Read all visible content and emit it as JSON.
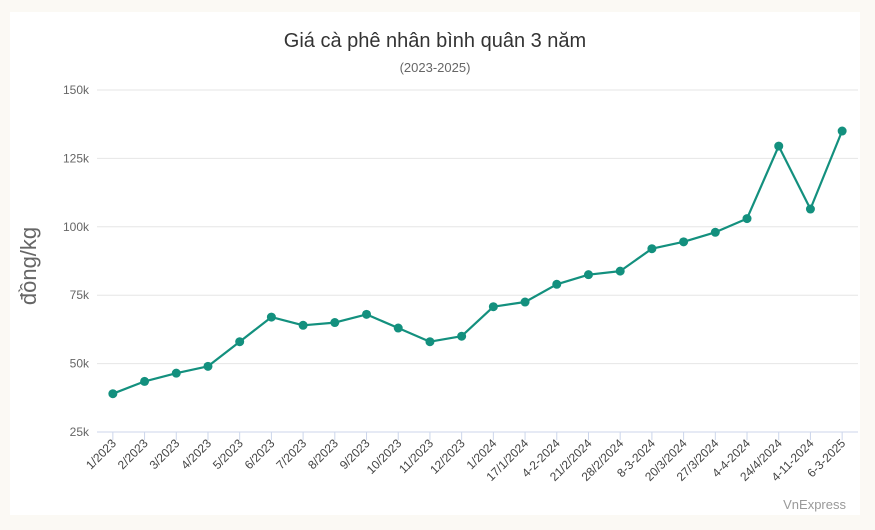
{
  "chart_data": {
    "type": "line",
    "title": "Giá cà phê nhân bình quân 3 năm",
    "subtitle": "(2023-2025)",
    "xlabel": "",
    "ylabel": "đồng/kg",
    "categories": [
      "1/2023",
      "2/2023",
      "3/2023",
      "4/2023",
      "5/2023",
      "6/2023",
      "7/2023",
      "8/2023",
      "9/2023",
      "10/2023",
      "11/2023",
      "12/2023",
      "1/2024",
      "17/1/2024",
      "4-2-2024",
      "21/2/2024",
      "28/2/2024",
      "8-3-2024",
      "20/3/2024",
      "27/3/2024",
      "4-4-2024",
      "24/4/2024",
      "4-11-2024",
      "6-3-2025"
    ],
    "series": [
      {
        "values": [
          39000,
          43500,
          46500,
          49000,
          58000,
          67000,
          64000,
          65000,
          68000,
          63000,
          58000,
          60000,
          70800,
          72500,
          79000,
          82500,
          83800,
          92000,
          94500,
          98000,
          103000,
          129500,
          106500,
          135000
        ]
      }
    ],
    "ylim": [
      25000,
      150000
    ],
    "yticks": [
      25000,
      50000,
      75000,
      100000,
      125000,
      150000
    ],
    "ytick_labels": [
      "25k",
      "50k",
      "75k",
      "100k",
      "125k",
      "150k"
    ],
    "grid": true,
    "legend": "none",
    "credit": "VnExpress",
    "colors": {
      "line": "#13907e",
      "grid": "#e6e6e6",
      "axis": "#ccd6eb"
    }
  }
}
